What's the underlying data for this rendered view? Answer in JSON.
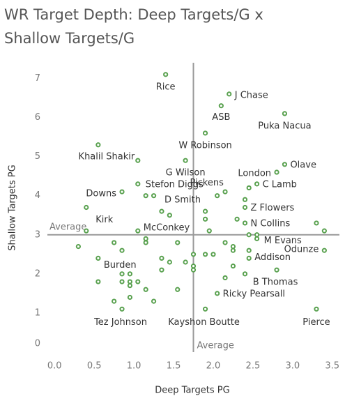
{
  "chart_data": {
    "type": "scatter",
    "title": "WR Target Depth: Deep Targets/G x Shallow Targets/G",
    "x_label": "Deep Targets PG",
    "y_label": "Shallow Targets PG",
    "color": "#59a14f",
    "xlim": [
      -0.09,
      3.59
    ],
    "ylim": [
      0,
      7.4
    ],
    "xticks": [
      {
        "value": 0,
        "label": "0.0"
      },
      0.5,
      {
        "value": 1,
        "label": "1.0"
      },
      1.5,
      {
        "value": 2,
        "label": "2.0"
      },
      2.5,
      {
        "value": 3,
        "label": "3.0"
      },
      3.5
    ],
    "yticks": [
      0,
      1,
      2,
      3,
      4,
      5,
      6,
      7
    ],
    "reference_lines": [
      {
        "axis": "x",
        "value": 1.75,
        "label": "Average"
      },
      {
        "axis": "y",
        "value": 3.0,
        "label": "Average"
      }
    ],
    "x": [
      1.4,
      2.2,
      2.1,
      2.9,
      1.9,
      0.55,
      1.65,
      1.05,
      2.9,
      2.8,
      2.55,
      2.45,
      2.05,
      2.15,
      1.05,
      0.85,
      1.15,
      1.25,
      1.35,
      1.45,
      1.9,
      1.9,
      2.4,
      2.4,
      2.3,
      2.4,
      0.4,
      0.4,
      1.05,
      1.15,
      1.15,
      1.95,
      0.3,
      0.75,
      0.85,
      1.55,
      2.15,
      2.25,
      2.25,
      2.45,
      2.55,
      2.55,
      3.4,
      3.3,
      3.4,
      2.45,
      2.45,
      2.8,
      2.4,
      2.25,
      2.15,
      2.05,
      1.9,
      3.3,
      0.85,
      1.55,
      1.75,
      1.75,
      1.75,
      1.9,
      2.0,
      1.65,
      1.35,
      1.45,
      1.35,
      0.55,
      0.85,
      0.85,
      0.95,
      0.95,
      0.95,
      1.05,
      1.15,
      1.25,
      0.95,
      0.75,
      0.55
    ],
    "values": [
      7.1,
      6.6,
      6.3,
      6.1,
      5.6,
      5.3,
      4.9,
      4.9,
      4.8,
      4.6,
      4.3,
      4.2,
      4.0,
      4.1,
      4.3,
      4.1,
      4.0,
      4.0,
      3.6,
      3.5,
      3.6,
      3.4,
      3.9,
      3.7,
      3.4,
      3.3,
      3.7,
      3.1,
      3.1,
      2.9,
      2.8,
      3.1,
      2.7,
      2.8,
      2.6,
      2.8,
      2.8,
      2.7,
      2.6,
      3.0,
      3.0,
      2.9,
      2.6,
      3.3,
      3.1,
      2.4,
      2.6,
      2.1,
      2.0,
      2.2,
      1.9,
      1.5,
      1.1,
      1.1,
      1.1,
      1.6,
      2.5,
      2.2,
      2.1,
      2.5,
      2.5,
      2.3,
      2.4,
      2.3,
      2.1,
      1.8,
      2.0,
      1.8,
      2.0,
      1.8,
      1.7,
      1.8,
      1.6,
      1.3,
      1.4,
      1.3,
      2.4
    ],
    "labels": [
      "Rice",
      "J Chase",
      "ASB",
      "Puka Nacua",
      "W Robinson",
      "Khalil Shakir",
      "G Wilson",
      null,
      "Olave",
      "London",
      "C Lamb",
      null,
      "Pickens",
      null,
      "Stefon Diggs",
      "Downs",
      null,
      null,
      "D Smith",
      null,
      null,
      null,
      null,
      "Z Flowers",
      null,
      "N Collins",
      "Kirk",
      null,
      "McConkey",
      null,
      null,
      null,
      null,
      null,
      null,
      null,
      null,
      null,
      null,
      null,
      null,
      "M Evans",
      "Odunze",
      null,
      null,
      "Addison",
      null,
      "B Thomas",
      null,
      null,
      null,
      "Ricky Pearsall",
      "Kayshon Boutte",
      "Pierce",
      "Tez Johnson",
      null,
      null,
      null,
      null,
      null,
      null,
      null,
      null,
      null,
      null,
      null,
      null,
      null,
      null,
      null,
      null,
      null,
      null,
      null,
      null,
      null,
      "Burden"
    ]
  }
}
